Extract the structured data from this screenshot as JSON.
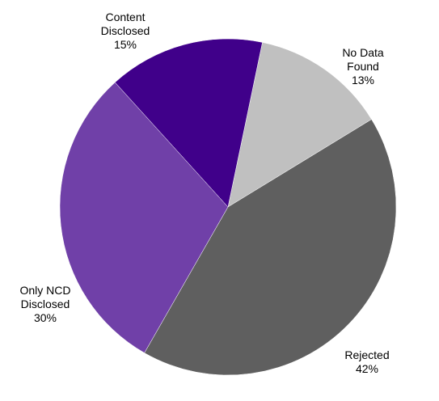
{
  "chart_data": {
    "type": "pie",
    "slices": [
      {
        "label": "No Data Found",
        "label_lines": [
          "No Data",
          "Found"
        ],
        "value": 13,
        "value_label": "13%",
        "color": "#c0c0c0"
      },
      {
        "label": "Rejected",
        "label_lines": [
          "Rejected"
        ],
        "value": 42,
        "value_label": "42%",
        "color": "#5f5f5f"
      },
      {
        "label": "Only NCD Disclosed",
        "label_lines": [
          "Only NCD",
          "Disclosed"
        ],
        "value": 30,
        "value_label": "30%",
        "color": "#7040a8"
      },
      {
        "label": "Content Disclosed",
        "label_lines": [
          "Content",
          "Disclosed"
        ],
        "value": 15,
        "value_label": "15%",
        "color": "#40008a"
      }
    ],
    "start_angle_deg": 11.8,
    "direction": "clockwise",
    "legend": "none"
  }
}
